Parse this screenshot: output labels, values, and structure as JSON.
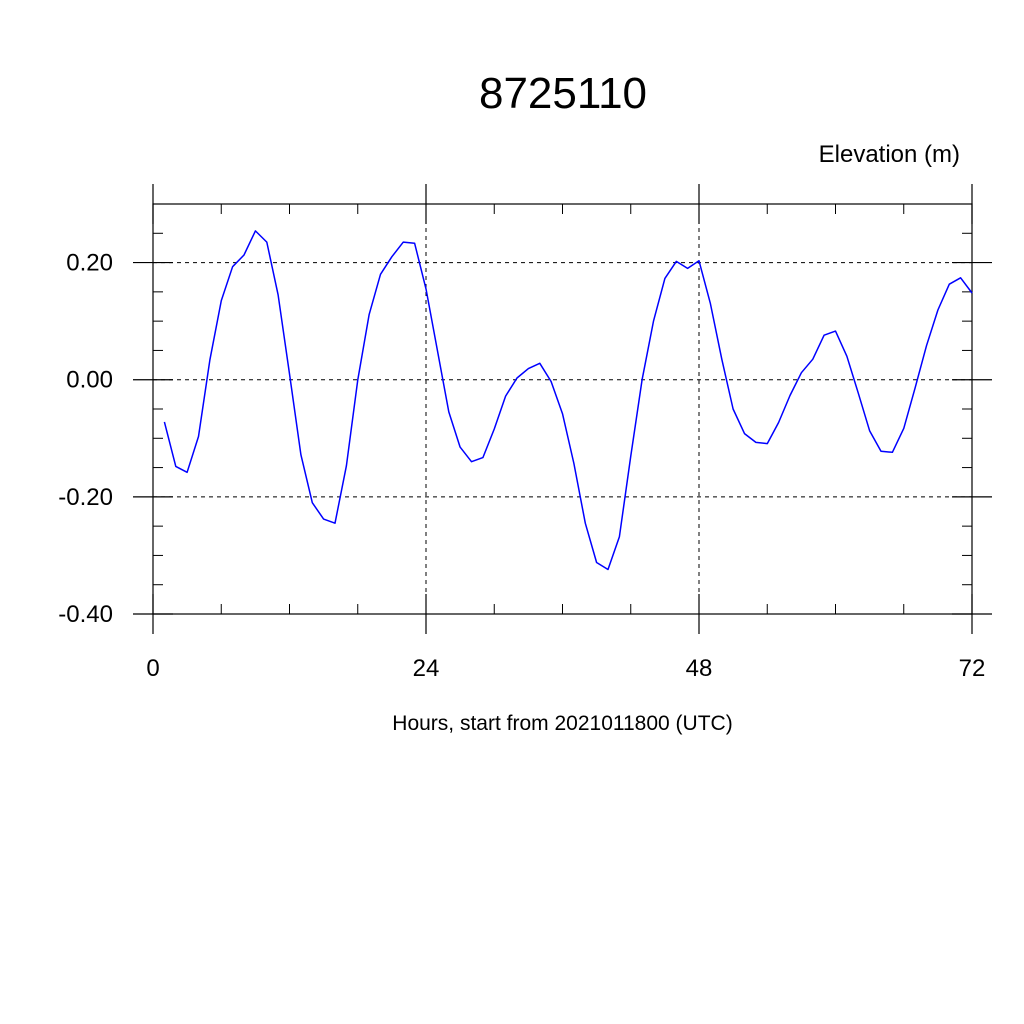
{
  "chart_data": {
    "type": "line",
    "title": "8725110",
    "ylabel": "Elevation (m)",
    "xlabel": "Hours, start from 2021011800 (UTC)",
    "xlim": [
      0,
      72
    ],
    "ylim": [
      -0.4,
      0.3
    ],
    "x_ticks": [
      0,
      24,
      48,
      72
    ],
    "x_tick_labels": [
      "0",
      "24",
      "48",
      "72"
    ],
    "y_ticks": [
      -0.4,
      -0.2,
      0.0,
      0.2
    ],
    "y_tick_labels": [
      "-0.40",
      "-0.20",
      "0.00",
      "0.20"
    ],
    "grid": "dashed at major ticks",
    "series": [
      {
        "color": "#0000ff",
        "x": [
          1,
          2,
          3,
          4,
          5,
          6,
          7,
          8,
          9,
          10,
          11,
          12,
          13,
          14,
          15,
          16,
          17,
          18,
          19,
          20,
          21,
          22,
          23,
          24,
          25,
          26,
          27,
          28,
          29,
          30,
          31,
          32,
          33,
          34,
          35,
          36,
          37,
          38,
          39,
          40,
          41,
          42,
          43,
          44,
          45,
          46,
          47,
          48,
          49,
          50,
          51,
          52,
          53,
          54,
          55,
          56,
          57,
          58,
          59,
          60,
          61,
          62,
          63,
          64,
          65,
          66,
          67,
          68,
          69,
          70,
          71,
          72
        ],
        "values": [
          -0.072,
          -0.148,
          -0.158,
          -0.097,
          0.034,
          0.135,
          0.193,
          0.213,
          0.254,
          0.235,
          0.145,
          0.01,
          -0.128,
          -0.21,
          -0.238,
          -0.245,
          -0.147,
          0.0,
          0.111,
          0.18,
          0.21,
          0.235,
          0.233,
          0.155,
          0.05,
          -0.055,
          -0.115,
          -0.14,
          -0.133,
          -0.084,
          -0.028,
          0.003,
          0.019,
          0.028,
          -0.003,
          -0.058,
          -0.143,
          -0.245,
          -0.312,
          -0.324,
          -0.268,
          -0.13,
          0.0,
          0.1,
          0.173,
          0.202,
          0.19,
          0.203,
          0.13,
          0.035,
          -0.05,
          -0.092,
          -0.107,
          -0.109,
          -0.073,
          -0.027,
          0.012,
          0.035,
          0.076,
          0.083,
          0.04,
          -0.023,
          -0.087,
          -0.122,
          -0.124,
          -0.083,
          -0.014,
          0.058,
          0.119,
          0.163,
          0.174,
          0.148
        ]
      }
    ]
  }
}
